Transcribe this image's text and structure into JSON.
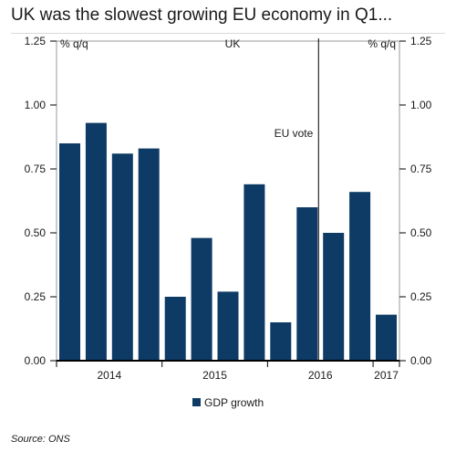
{
  "title": "UK was the slowest growing EU economy in Q1...",
  "source": "Source: ONS",
  "colors": {
    "bar": "#0d3b66",
    "axis": "#000000",
    "frame": "#999999"
  },
  "chart_data": {
    "type": "bar",
    "x": [
      "2014 Q1",
      "2014 Q2",
      "2014 Q3",
      "2014 Q4",
      "2015 Q1",
      "2015 Q2",
      "2015 Q3",
      "2015 Q4",
      "2016 Q1",
      "2016 Q2",
      "2016 Q3",
      "2016 Q4",
      "2017 Q1"
    ],
    "year_labels": [
      {
        "label": "2014",
        "from": 0,
        "to": 3
      },
      {
        "label": "2015",
        "from": 4,
        "to": 7
      },
      {
        "label": "2016",
        "from": 8,
        "to": 11
      },
      {
        "label": "2017",
        "from": 12,
        "to": 12
      }
    ],
    "series": [
      {
        "name": "GDP growth",
        "values": [
          0.85,
          0.93,
          0.81,
          0.83,
          0.25,
          0.48,
          0.27,
          0.69,
          0.15,
          0.6,
          0.5,
          0.66,
          0.18
        ]
      }
    ],
    "ylim": [
      0,
      1.25
    ],
    "yticks": [
      0,
      0.25,
      0.5,
      0.75,
      1.0,
      1.25
    ],
    "ytick_labels": [
      "0.00",
      "0.25",
      "0.50",
      "0.75",
      "1.00",
      "1.25"
    ],
    "ylabel_left": "% q/q",
    "ylabel_right": "% q/q",
    "panel_label": "UK",
    "annotation": {
      "label": "EU vote",
      "after_index": 9
    },
    "legend_position": "bottom-center",
    "grid": false
  }
}
